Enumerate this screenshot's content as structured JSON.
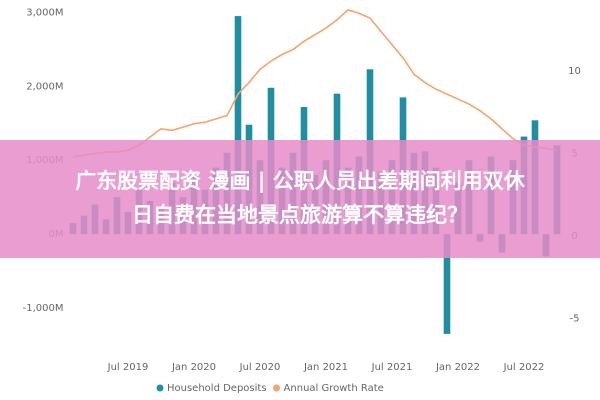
{
  "chart_data": {
    "type": "bar-line",
    "categories": [
      null,
      null,
      null,
      null,
      null,
      "Jul 2019",
      null,
      null,
      null,
      null,
      null,
      "Jan 2020",
      null,
      null,
      null,
      null,
      null,
      "Jul 2020",
      null,
      null,
      null,
      null,
      null,
      "Jan 2021",
      null,
      null,
      null,
      null,
      null,
      "Jul 2021",
      null,
      null,
      null,
      null,
      null,
      "Jan 2022",
      null,
      null,
      null,
      null,
      null,
      "Jul 2022",
      null,
      null,
      null
    ],
    "series": [
      {
        "name": "Household Deposits",
        "color": "#1f8ea3",
        "type": "bar",
        "values": [
          150,
          250,
          400,
          200,
          500,
          300,
          600,
          450,
          350,
          700,
          500,
          800,
          600,
          900,
          1100,
          2950,
          1480,
          1000,
          1980,
          900,
          1100,
          1720,
          800,
          1000,
          1900,
          900,
          1050,
          2230,
          850,
          1000,
          1850,
          1100,
          1120,
          900,
          -1350,
          700,
          1000,
          -100,
          1050,
          -250,
          1000,
          1320,
          1540,
          -300,
          1200
        ]
      },
      {
        "name": "Annual Growth Rate",
        "color": "#f5a46e",
        "type": "line",
        "axis": "y2",
        "values": [
          4.8,
          4.9,
          5.0,
          5.1,
          5.1,
          5.2,
          5.5,
          6.0,
          6.5,
          6.4,
          6.6,
          6.8,
          6.9,
          7.1,
          7.3,
          8.6,
          9.3,
          10.1,
          10.6,
          11.0,
          11.3,
          11.8,
          12.2,
          12.6,
          13.1,
          13.7,
          13.5,
          13.2,
          12.4,
          11.6,
          10.8,
          9.8,
          9.3,
          8.9,
          8.6,
          8.3,
          8.0,
          7.6,
          7.1,
          6.5,
          5.9,
          5.5,
          5.4,
          5.3,
          5.2
        ]
      }
    ],
    "ylim": [
      -1500,
      3100
    ],
    "yticks": [
      {
        "value": -1000,
        "label": "-1,000M"
      },
      {
        "value": 0,
        "label": "0M"
      },
      {
        "value": 1000,
        "label": "1,000M"
      },
      {
        "value": 2000,
        "label": "2,000M"
      },
      {
        "value": 3000,
        "label": "3,000M"
      }
    ],
    "y2lim": [
      -6.6,
      14
    ],
    "y2ticks": [
      -5,
      0,
      5,
      10
    ],
    "legend": "bottom"
  },
  "banner": {
    "lines": [
      "广东股票配资 漫画 | 公职人员出差期间利用双休",
      "日自费在当地景点旅游算不算违纪？"
    ]
  }
}
